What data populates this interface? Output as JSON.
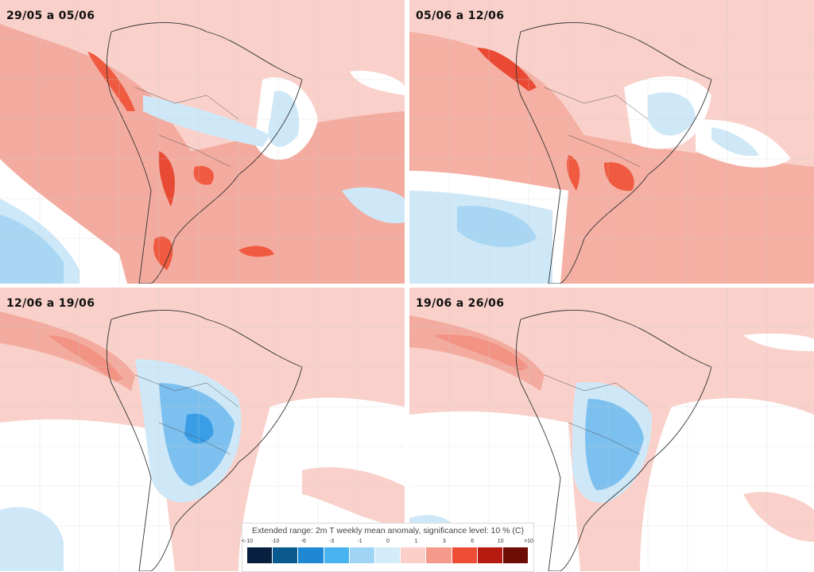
{
  "panels": [
    {
      "label": "29/05 a 05/06"
    },
    {
      "label": "05/06 a 12/06"
    },
    {
      "label": "12/06 a 19/06"
    },
    {
      "label": "19/06 a 26/06"
    }
  ],
  "legend": {
    "title": "Extended range: 2m T weekly mean anomaly, significance level: 10 % (C)",
    "ticks": [
      "<-10",
      "-10",
      "-6",
      "-3",
      "-1",
      "0",
      "1",
      "3",
      "6",
      "10",
      ">10"
    ],
    "colors": [
      "#08203f",
      "#0b5a8f",
      "#1e88d4",
      "#49b3f0",
      "#9fd4f5",
      "#d4ebfa",
      "#f9cfc8",
      "#f39a8a",
      "#ef4c36",
      "#b51b10",
      "#6e0d06"
    ]
  }
}
